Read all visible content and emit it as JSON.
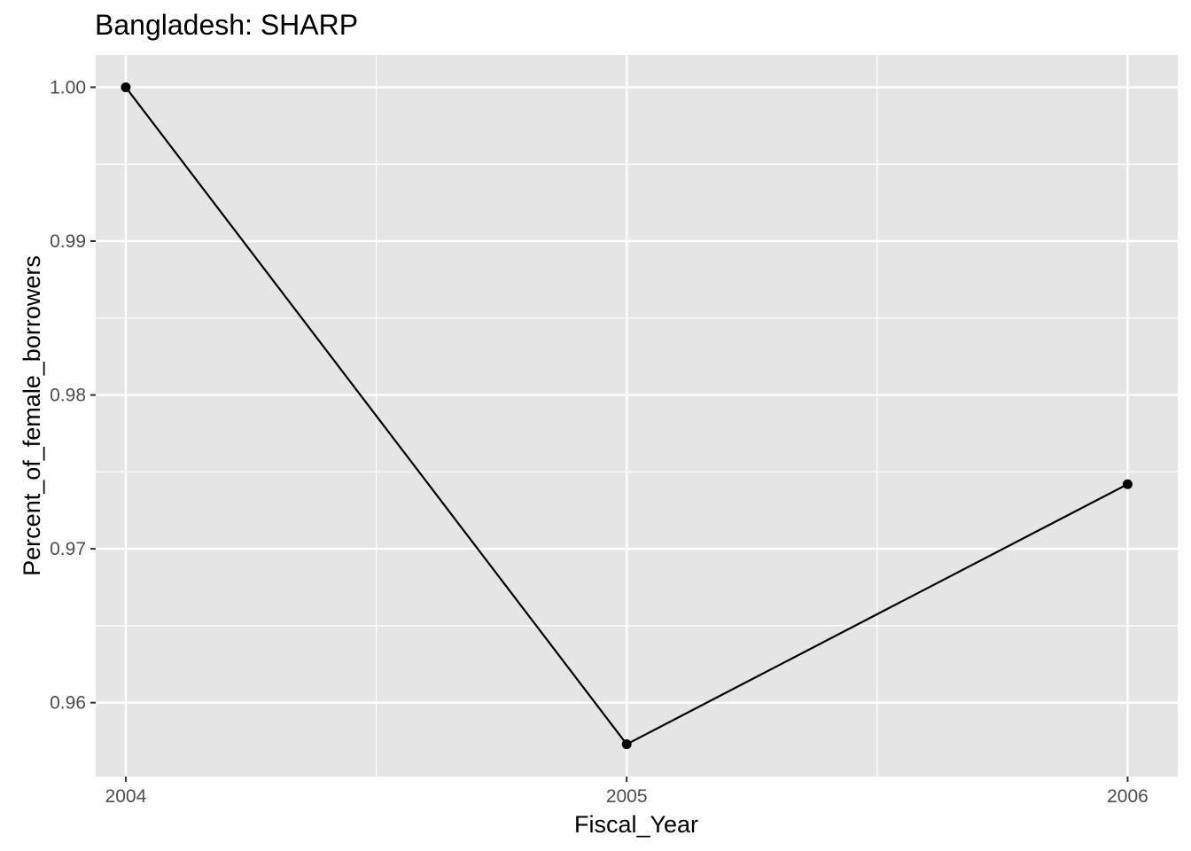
{
  "chart_data": {
    "type": "line",
    "title": "Bangladesh:  SHARP",
    "xlabel": "Fiscal_Year",
    "ylabel": "Percent_of_female_borrowers",
    "x": [
      2004,
      2005,
      2006
    ],
    "x_tick_labels": [
      "2004",
      "2005",
      "2006"
    ],
    "xlim": [
      2003.94,
      2006.1
    ],
    "y_ticks": [
      0.96,
      0.97,
      0.98,
      0.99,
      1.0
    ],
    "y_tick_labels": [
      "0.96",
      "0.97",
      "0.98",
      "0.99",
      "1.00"
    ],
    "ylim": [
      0.9552,
      1.0021
    ],
    "series": [
      {
        "values": [
          1.0,
          0.9573,
          0.9742
        ],
        "color": "#000000"
      }
    ],
    "grid": true,
    "panel_background": "#e5e5e5",
    "grid_color": "#ffffff"
  }
}
